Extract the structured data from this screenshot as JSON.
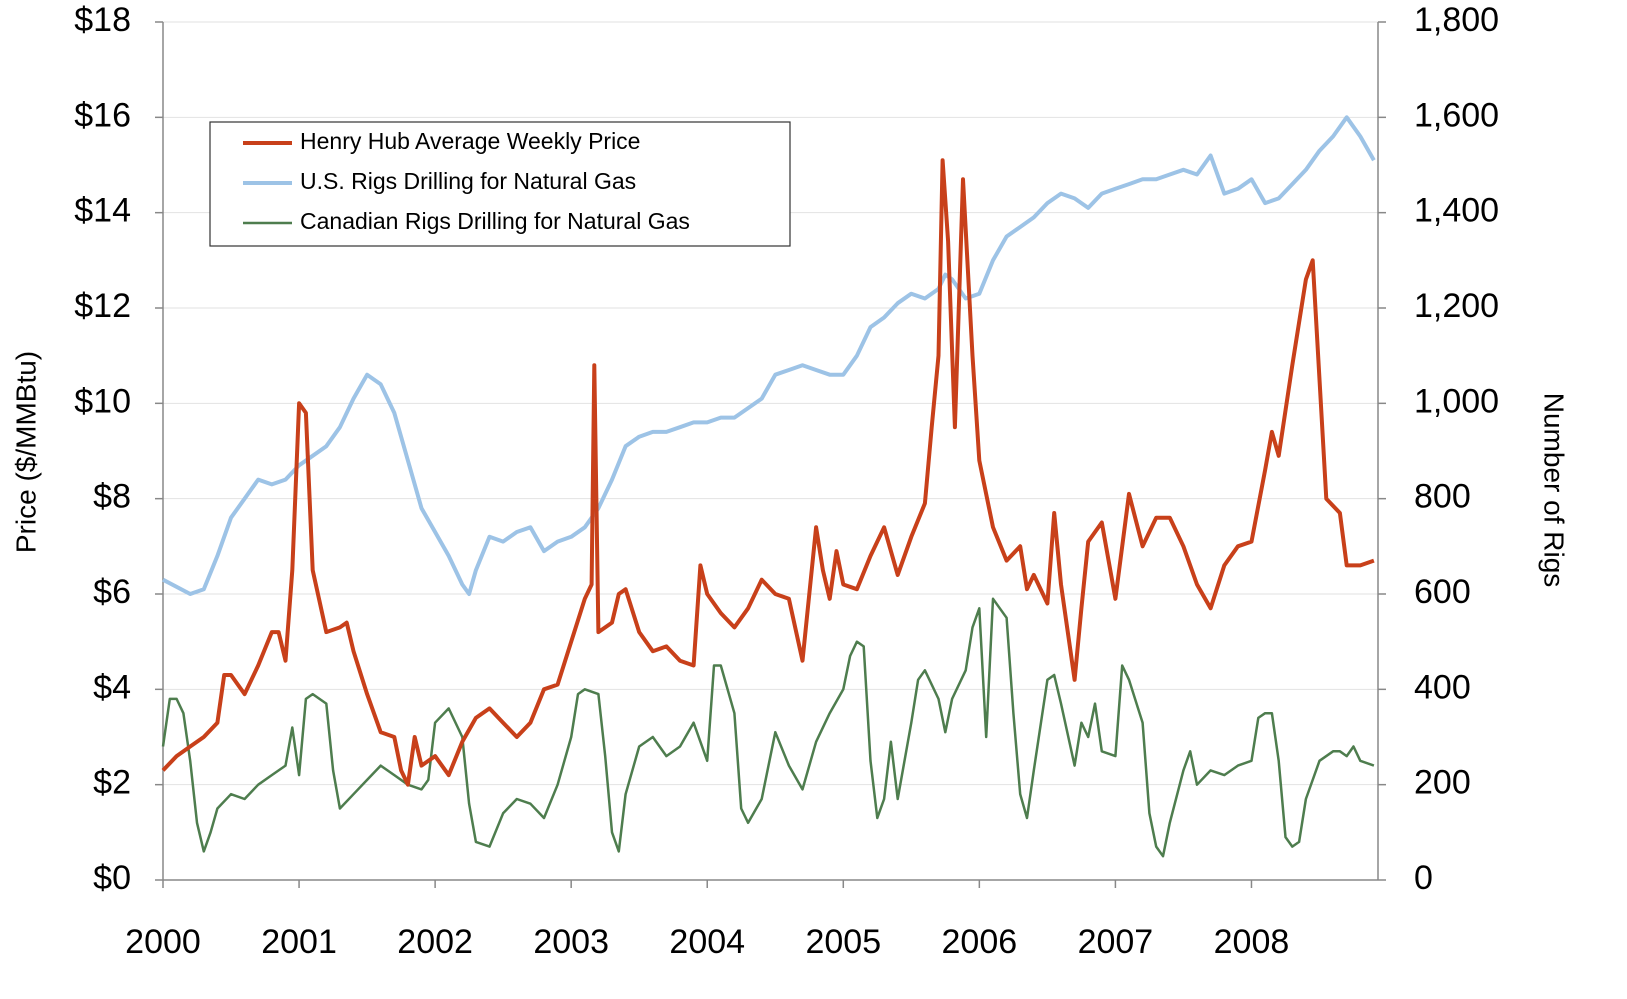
{
  "chart_data": {
    "type": "line",
    "y_label": "Price ($/MMBtu)",
    "y2_label": "Number of Rigs",
    "grid": true,
    "legend": "upper-left",
    "xlim": [
      2000,
      2008.93
    ],
    "xticks": [
      2000,
      2001,
      2002,
      2003,
      2004,
      2005,
      2006,
      2007,
      2008
    ],
    "ylim": [
      0,
      18
    ],
    "yticks": [
      {
        "value": 0,
        "label": "$0"
      },
      {
        "value": 2,
        "label": "$2"
      },
      {
        "value": 4,
        "label": "$4"
      },
      {
        "value": 6,
        "label": "$6"
      },
      {
        "value": 8,
        "label": "$8"
      },
      {
        "value": 10,
        "label": "$10"
      },
      {
        "value": 12,
        "label": "$12"
      },
      {
        "value": 14,
        "label": "$14"
      },
      {
        "value": 16,
        "label": "$16"
      },
      {
        "value": 18,
        "label": "$18"
      }
    ],
    "y2lim": [
      0,
      1800
    ],
    "y2ticks": [
      0,
      200,
      400,
      600,
      800,
      {
        "value": 1000,
        "label": "1,000"
      },
      {
        "value": 1200,
        "label": "1,200"
      },
      {
        "value": 1400,
        "label": "1,400"
      },
      {
        "value": 1600,
        "label": "1,600"
      },
      {
        "value": 1800,
        "label": "1,800"
      }
    ],
    "series": [
      {
        "name": "Henry Hub Average Weekly Price",
        "color": "#c8401a",
        "width": 4,
        "x": [
          2000.0,
          2000.1,
          2000.2,
          2000.3,
          2000.4,
          2000.45,
          2000.5,
          2000.6,
          2000.7,
          2000.8,
          2000.85,
          2000.9,
          2000.95,
          2001.0,
          2001.05,
          2001.1,
          2001.2,
          2001.3,
          2001.35,
          2001.4,
          2001.5,
          2001.6,
          2001.7,
          2001.75,
          2001.8,
          2001.85,
          2001.9,
          2002.0,
          2002.1,
          2002.2,
          2002.3,
          2002.4,
          2002.5,
          2002.6,
          2002.7,
          2002.8,
          2002.9,
          2003.0,
          2003.1,
          2003.15,
          2003.17,
          2003.2,
          2003.3,
          2003.35,
          2003.4,
          2003.5,
          2003.6,
          2003.7,
          2003.8,
          2003.9,
          2003.95,
          2004.0,
          2004.1,
          2004.2,
          2004.3,
          2004.4,
          2004.5,
          2004.6,
          2004.7,
          2004.8,
          2004.85,
          2004.9,
          2004.95,
          2005.0,
          2005.1,
          2005.2,
          2005.3,
          2005.4,
          2005.5,
          2005.6,
          2005.65,
          2005.7,
          2005.73,
          2005.77,
          2005.82,
          2005.88,
          2005.95,
          2006.0,
          2006.1,
          2006.2,
          2006.3,
          2006.35,
          2006.4,
          2006.5,
          2006.55,
          2006.6,
          2006.7,
          2006.75,
          2006.8,
          2006.9,
          2007.0,
          2007.1,
          2007.2,
          2007.3,
          2007.4,
          2007.5,
          2007.6,
          2007.7,
          2007.8,
          2007.9,
          2008.0,
          2008.1,
          2008.15,
          2008.2,
          2008.3,
          2008.4,
          2008.45,
          2008.5,
          2008.55,
          2008.65,
          2008.7,
          2008.8,
          2008.9
        ],
        "values": [
          2.3,
          2.6,
          2.8,
          3.0,
          3.3,
          4.3,
          4.3,
          3.9,
          4.5,
          5.2,
          5.2,
          4.6,
          6.5,
          10.0,
          9.8,
          6.5,
          5.2,
          5.3,
          5.4,
          4.8,
          3.9,
          3.1,
          3.0,
          2.3,
          2.0,
          3.0,
          2.4,
          2.6,
          2.2,
          2.9,
          3.4,
          3.6,
          3.3,
          3.0,
          3.3,
          4.0,
          4.1,
          5.0,
          5.9,
          6.2,
          10.8,
          5.2,
          5.4,
          6.0,
          6.1,
          5.2,
          4.8,
          4.9,
          4.6,
          4.5,
          6.6,
          6.0,
          5.6,
          5.3,
          5.7,
          6.3,
          6.0,
          5.9,
          4.6,
          7.4,
          6.5,
          5.9,
          6.9,
          6.2,
          6.1,
          6.8,
          7.4,
          6.4,
          7.2,
          7.9,
          9.5,
          11.0,
          15.1,
          13.4,
          9.5,
          14.7,
          11.0,
          8.8,
          7.4,
          6.7,
          7.0,
          6.1,
          6.4,
          5.8,
          7.7,
          6.2,
          4.2,
          5.7,
          7.1,
          7.5,
          5.9,
          8.1,
          7.0,
          7.6,
          7.6,
          7.0,
          6.2,
          5.7,
          6.6,
          7.0,
          7.1,
          8.6,
          9.4,
          8.9,
          10.8,
          12.6,
          13.0,
          10.5,
          8.0,
          7.7,
          6.6,
          6.6,
          6.7
        ]
      },
      {
        "name": "U.S. Rigs Drilling for Natural Gas",
        "color": "#9dc3e6",
        "width": 4,
        "axis": "y2",
        "x": [
          2000.0,
          2000.2,
          2000.3,
          2000.4,
          2000.5,
          2000.6,
          2000.7,
          2000.8,
          2000.9,
          2001.0,
          2001.1,
          2001.2,
          2001.3,
          2001.4,
          2001.5,
          2001.6,
          2001.7,
          2001.8,
          2001.9,
          2002.0,
          2002.1,
          2002.2,
          2002.25,
          2002.3,
          2002.4,
          2002.5,
          2002.6,
          2002.7,
          2002.8,
          2002.9,
          2003.0,
          2003.1,
          2003.2,
          2003.3,
          2003.4,
          2003.5,
          2003.6,
          2003.7,
          2003.8,
          2003.9,
          2004.0,
          2004.1,
          2004.2,
          2004.3,
          2004.4,
          2004.5,
          2004.6,
          2004.7,
          2004.8,
          2004.9,
          2005.0,
          2005.1,
          2005.2,
          2005.3,
          2005.4,
          2005.5,
          2005.6,
          2005.7,
          2005.75,
          2005.8,
          2005.9,
          2006.0,
          2006.1,
          2006.2,
          2006.3,
          2006.4,
          2006.5,
          2006.6,
          2006.7,
          2006.8,
          2006.9,
          2007.0,
          2007.1,
          2007.2,
          2007.3,
          2007.4,
          2007.5,
          2007.6,
          2007.7,
          2007.8,
          2007.9,
          2008.0,
          2008.1,
          2008.2,
          2008.3,
          2008.4,
          2008.5,
          2008.6,
          2008.7,
          2008.8,
          2008.9
        ],
        "values": [
          630,
          600,
          610,
          680,
          760,
          800,
          840,
          830,
          840,
          870,
          890,
          910,
          950,
          1010,
          1060,
          1040,
          980,
          880,
          780,
          730,
          680,
          620,
          600,
          650,
          720,
          710,
          730,
          740,
          690,
          710,
          720,
          740,
          780,
          840,
          910,
          930,
          940,
          940,
          950,
          960,
          960,
          970,
          970,
          990,
          1010,
          1060,
          1070,
          1080,
          1070,
          1060,
          1060,
          1100,
          1160,
          1180,
          1210,
          1230,
          1220,
          1240,
          1270,
          1260,
          1220,
          1230,
          1300,
          1350,
          1370,
          1390,
          1420,
          1440,
          1430,
          1410,
          1440,
          1450,
          1460,
          1470,
          1470,
          1480,
          1490,
          1480,
          1520,
          1440,
          1450,
          1470,
          1420,
          1430,
          1460,
          1490,
          1530,
          1560,
          1600,
          1560,
          1510
        ]
      },
      {
        "name": "Canadian Rigs Drilling for Natural Gas",
        "color": "#4e7d4e",
        "width": 2.5,
        "axis": "y2",
        "x": [
          2000.0,
          2000.05,
          2000.1,
          2000.15,
          2000.2,
          2000.25,
          2000.3,
          2000.35,
          2000.4,
          2000.5,
          2000.6,
          2000.7,
          2000.8,
          2000.9,
          2000.95,
          2001.0,
          2001.05,
          2001.1,
          2001.2,
          2001.25,
          2001.3,
          2001.4,
          2001.5,
          2001.6,
          2001.7,
          2001.8,
          2001.9,
          2001.95,
          2002.0,
          2002.1,
          2002.2,
          2002.25,
          2002.3,
          2002.4,
          2002.5,
          2002.6,
          2002.7,
          2002.8,
          2002.9,
          2003.0,
          2003.05,
          2003.1,
          2003.2,
          2003.25,
          2003.3,
          2003.35,
          2003.4,
          2003.5,
          2003.6,
          2003.7,
          2003.8,
          2003.9,
          2004.0,
          2004.05,
          2004.1,
          2004.2,
          2004.25,
          2004.3,
          2004.4,
          2004.5,
          2004.6,
          2004.7,
          2004.8,
          2004.9,
          2005.0,
          2005.05,
          2005.1,
          2005.15,
          2005.2,
          2005.25,
          2005.3,
          2005.35,
          2005.4,
          2005.5,
          2005.55,
          2005.6,
          2005.7,
          2005.75,
          2005.8,
          2005.9,
          2005.95,
          2006.0,
          2006.05,
          2006.1,
          2006.2,
          2006.25,
          2006.3,
          2006.35,
          2006.4,
          2006.5,
          2006.55,
          2006.6,
          2006.7,
          2006.75,
          2006.8,
          2006.85,
          2006.9,
          2007.0,
          2007.05,
          2007.1,
          2007.2,
          2007.25,
          2007.3,
          2007.35,
          2007.4,
          2007.5,
          2007.55,
          2007.6,
          2007.7,
          2007.8,
          2007.9,
          2008.0,
          2008.05,
          2008.1,
          2008.15,
          2008.2,
          2008.25,
          2008.3,
          2008.35,
          2008.4,
          2008.5,
          2008.6,
          2008.65,
          2008.7,
          2008.75,
          2008.8,
          2008.9
        ],
        "values": [
          280,
          380,
          380,
          350,
          250,
          120,
          60,
          100,
          150,
          180,
          170,
          200,
          220,
          240,
          320,
          220,
          380,
          390,
          370,
          230,
          150,
          180,
          210,
          240,
          220,
          200,
          190,
          210,
          330,
          360,
          300,
          160,
          80,
          70,
          140,
          170,
          160,
          130,
          200,
          300,
          390,
          400,
          390,
          260,
          100,
          60,
          180,
          280,
          300,
          260,
          280,
          330,
          250,
          450,
          450,
          350,
          150,
          120,
          170,
          310,
          240,
          190,
          290,
          350,
          400,
          470,
          500,
          490,
          250,
          130,
          170,
          290,
          170,
          330,
          420,
          440,
          380,
          310,
          380,
          440,
          530,
          570,
          300,
          590,
          550,
          350,
          180,
          130,
          230,
          420,
          430,
          370,
          240,
          330,
          300,
          370,
          270,
          260,
          450,
          420,
          330,
          140,
          70,
          50,
          120,
          230,
          270,
          200,
          230,
          220,
          240,
          250,
          340,
          350,
          350,
          250,
          90,
          70,
          80,
          170,
          250,
          270,
          270,
          260,
          280,
          250,
          240
        ]
      }
    ]
  }
}
